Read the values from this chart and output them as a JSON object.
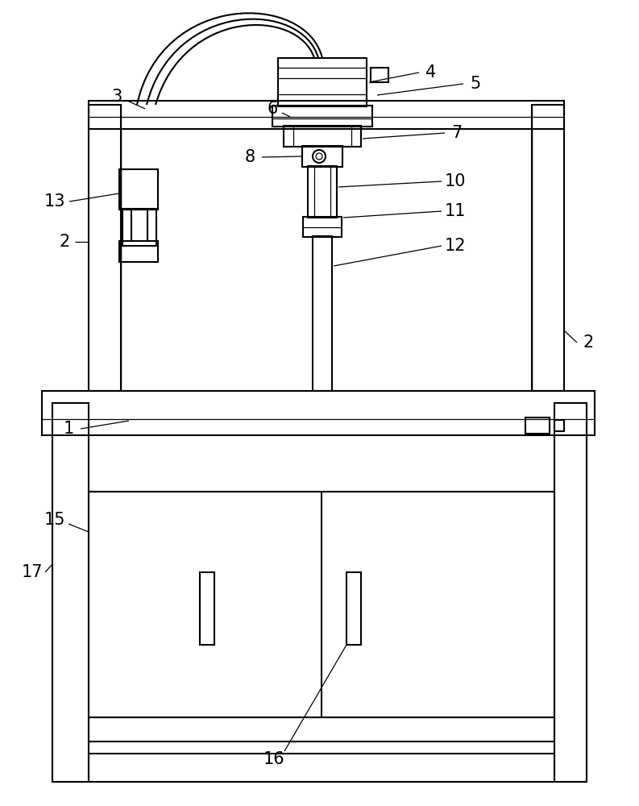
{
  "background_color": "#ffffff",
  "line_color": "#000000",
  "lw": 1.5,
  "tlw": 0.9,
  "fig_width": 7.93,
  "fig_height": 10.0
}
